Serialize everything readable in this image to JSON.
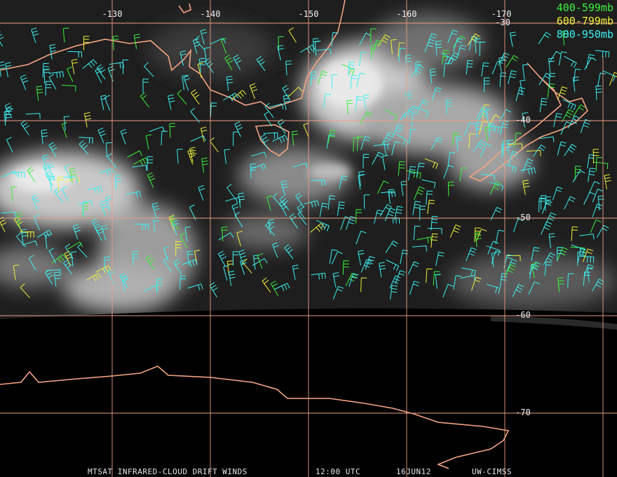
{
  "map": {
    "longitude_labels": [
      "-130",
      "-140",
      "-150",
      "-160",
      "-170"
    ],
    "latitude_labels": [
      "-30",
      "-40",
      "-50",
      "-60",
      "-70"
    ],
    "legend": [
      {
        "label": "400-599mb",
        "color": "#3cf03c"
      },
      {
        "label": "600-799mb",
        "color": "#f0f03c"
      },
      {
        "label": "800-950mb",
        "color": "#3cf0f0"
      }
    ],
    "footer": [
      "MTSAT INFRARED-CLOUD DRIFT WINDS",
      "12:00 UTC",
      "16JUN12",
      "UW-CIMSS"
    ]
  }
}
